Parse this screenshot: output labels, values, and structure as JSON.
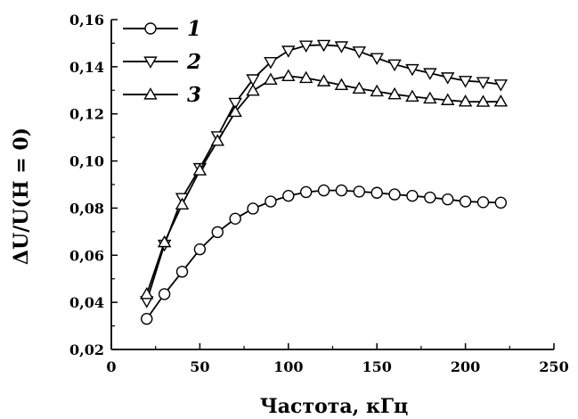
{
  "chart_data": {
    "type": "line",
    "title": "",
    "xlabel": "Частота, кГц",
    "ylabel": "ΔU/U(H = 0)",
    "xlim": [
      0,
      250
    ],
    "ylim": [
      0.02,
      0.16
    ],
    "xticks": [
      0,
      50,
      100,
      150,
      200,
      250
    ],
    "xtick_labels": [
      "0",
      "50",
      "100",
      "150",
      "200",
      "250"
    ],
    "yticks": [
      0.02,
      0.04,
      0.06,
      0.08,
      0.1,
      0.12,
      0.14,
      0.16
    ],
    "ytick_labels": [
      "0,02",
      "0,04",
      "0,06",
      "0,08",
      "0,10",
      "0,12",
      "0,14",
      "0,16"
    ],
    "grid": false,
    "legend_position": "top-left",
    "x": [
      20,
      30,
      40,
      50,
      60,
      70,
      80,
      90,
      100,
      110,
      120,
      130,
      140,
      150,
      160,
      170,
      180,
      190,
      200,
      210,
      220
    ],
    "series": [
      {
        "name": "1",
        "marker": "circle",
        "values": [
          0.033,
          0.0435,
          0.053,
          0.0625,
          0.0698,
          0.0755,
          0.0798,
          0.0828,
          0.0852,
          0.0868,
          0.0875,
          0.0875,
          0.087,
          0.0865,
          0.0858,
          0.0852,
          0.0845,
          0.0837,
          0.0828,
          0.0825,
          0.0823
        ]
      },
      {
        "name": "2",
        "marker": "triangle-down",
        "values": [
          0.0405,
          0.0645,
          0.0843,
          0.097,
          0.1105,
          0.1247,
          0.1347,
          0.142,
          0.1468,
          0.149,
          0.1493,
          0.1487,
          0.1465,
          0.1437,
          0.141,
          0.139,
          0.1373,
          0.1355,
          0.134,
          0.1335,
          0.1325
        ]
      },
      {
        "name": "3",
        "marker": "triangle-up",
        "values": [
          0.0435,
          0.0655,
          0.0815,
          0.096,
          0.1085,
          0.1208,
          0.1298,
          0.1345,
          0.136,
          0.1352,
          0.1338,
          0.1322,
          0.1307,
          0.1295,
          0.1283,
          0.1273,
          0.1265,
          0.1258,
          0.1252,
          0.1251,
          0.1252
        ]
      }
    ]
  }
}
